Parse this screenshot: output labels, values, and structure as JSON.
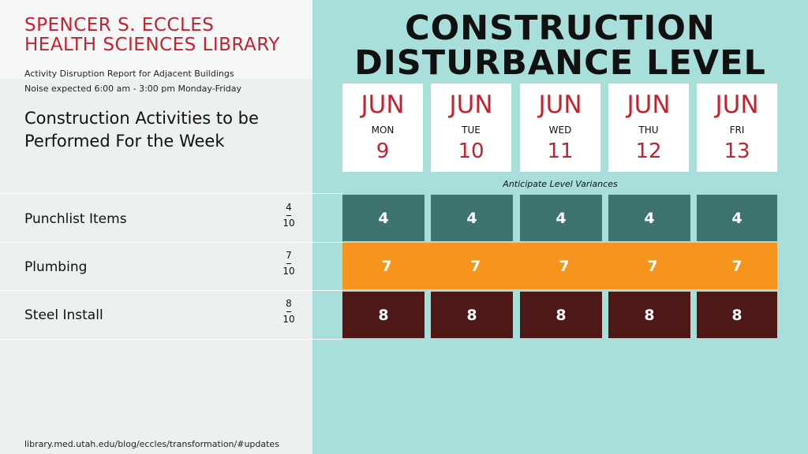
{
  "header": {
    "library_title_1": "SPENCER S. ECCLES",
    "library_title_2": "HEALTH SCIENCES LIBRARY",
    "report": "Activity Disruption Report for Adjacent Buildings",
    "noise": "Noise expected 6:00 am - 3:00 pm Monday-Friday",
    "week_title": "Construction Activities to be Performed For the Week",
    "main_title_1": "CONSTRUCTION",
    "main_title_2": "DISTURBANCE LEVEL"
  },
  "days": [
    {
      "month": "JUN",
      "dow": "MON",
      "day": "9"
    },
    {
      "month": "JUN",
      "dow": "TUE",
      "day": "10"
    },
    {
      "month": "JUN",
      "dow": "WED",
      "day": "11"
    },
    {
      "month": "JUN",
      "dow": "THU",
      "day": "12"
    },
    {
      "month": "JUN",
      "dow": "FRI",
      "day": "13"
    }
  ],
  "note": "Anticipate Level Variances",
  "activities": [
    {
      "name": "Punchlist Items",
      "level": "4",
      "scale": "10",
      "color": "#3f7370",
      "values": [
        "4",
        "4",
        "4",
        "4",
        "4"
      ]
    },
    {
      "name": "Plumbing",
      "level": "7",
      "scale": "10",
      "color": "#f7941d",
      "values": [
        "7",
        "7",
        "7",
        "7",
        "7"
      ]
    },
    {
      "name": "Steel Install",
      "level": "8",
      "scale": "10",
      "color": "#4e1817",
      "values": [
        "8",
        "8",
        "8",
        "8",
        "8"
      ]
    }
  ],
  "colors": {
    "accent_red": "#c8202f",
    "panel_teal": "#a9dfdb"
  },
  "footer": {
    "url": "library.med.utah.edu/blog/eccles/transformation/#updates"
  }
}
